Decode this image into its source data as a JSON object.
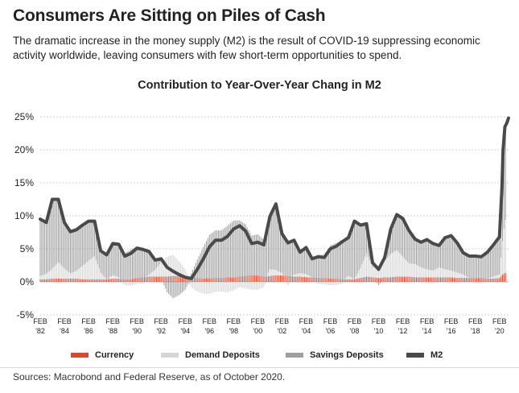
{
  "headline": "Consumers Are Sitting on Piles of Cash",
  "subtitle": "The dramatic increase in the money supply (M2) is the result of COVID-19 suppressing economic activity worldwide, leaving consumers with few short-term opportunities to spend.",
  "source": "Sources: Macrobond and Federal Reserve, as of October 2020.",
  "colors": {
    "currency": "#d9492f",
    "demand": "#d6d6d6",
    "savings": "#9e9e9e",
    "m2": "#4a4a4a"
  },
  "chart_data": {
    "type": "bar",
    "title": "Contribution to Year-Over-Year Chang in M2",
    "xlabel": "",
    "ylabel": "",
    "ylim": [
      -5,
      25
    ],
    "yticks": [
      -5,
      0,
      5,
      10,
      15,
      20,
      25
    ],
    "ytick_labels": [
      "-5%",
      "0%",
      "5%",
      "10%",
      "15%",
      "20%",
      "25%"
    ],
    "x_tick_labels": [
      {
        "year": 1982,
        "line1": "FEB",
        "line2": "'82"
      },
      {
        "year": 1984,
        "line1": "FEB",
        "line2": "'84"
      },
      {
        "year": 1986,
        "line1": "FEB",
        "line2": "'86"
      },
      {
        "year": 1988,
        "line1": "FEB",
        "line2": "'88"
      },
      {
        "year": 1990,
        "line1": "FEB",
        "line2": "'90"
      },
      {
        "year": 1992,
        "line1": "FEB",
        "line2": "'92"
      },
      {
        "year": 1994,
        "line1": "FEB",
        "line2": "'94"
      },
      {
        "year": 1996,
        "line1": "FEB",
        "line2": "'96"
      },
      {
        "year": 1998,
        "line1": "FEB",
        "line2": "'98"
      },
      {
        "year": 2000,
        "line1": "FEB",
        "line2": "'00"
      },
      {
        "year": 2002,
        "line1": "FEB",
        "line2": "'02"
      },
      {
        "year": 2004,
        "line1": "FEB",
        "line2": "'04"
      },
      {
        "year": 2006,
        "line1": "FEB",
        "line2": "'06"
      },
      {
        "year": 2008,
        "line1": "FEB",
        "line2": "'08"
      },
      {
        "year": 2010,
        "line1": "FEB",
        "line2": "'10"
      },
      {
        "year": 2012,
        "line1": "FEB",
        "line2": "'12"
      },
      {
        "year": 2014,
        "line1": "FEB",
        "line2": "'14"
      },
      {
        "year": 2016,
        "line1": "FEB",
        "line2": "'16"
      },
      {
        "year": 2018,
        "line1": "FEB",
        "line2": "'18"
      },
      {
        "year": 2020,
        "line1": "FEB",
        "line2": "'20"
      }
    ],
    "grid": true,
    "legend_position": "bottom",
    "series": [
      {
        "name": "Currency",
        "key": "currency",
        "kind": "bar",
        "x": [
          1982.0,
          1982.5,
          1983.0,
          1983.5,
          1984.0,
          1984.5,
          1985.0,
          1985.5,
          1986.0,
          1986.5,
          1987.0,
          1987.5,
          1988.0,
          1988.5,
          1989.0,
          1989.5,
          1990.0,
          1990.5,
          1991.0,
          1991.5,
          1992.0,
          1992.5,
          1993.0,
          1993.5,
          1994.0,
          1994.5,
          1995.0,
          1995.5,
          1996.0,
          1996.5,
          1997.0,
          1997.5,
          1998.0,
          1998.5,
          1999.0,
          1999.5,
          2000.0,
          2000.5,
          2001.0,
          2001.5,
          2002.0,
          2002.5,
          2003.0,
          2003.5,
          2004.0,
          2004.5,
          2005.0,
          2005.5,
          2006.0,
          2006.5,
          2007.0,
          2007.5,
          2008.0,
          2008.5,
          2009.0,
          2009.5,
          2010.0,
          2010.5,
          2011.0,
          2011.5,
          2012.0,
          2012.5,
          2013.0,
          2013.5,
          2014.0,
          2014.5,
          2015.0,
          2015.5,
          2016.0,
          2016.5,
          2017.0,
          2017.5,
          2018.0,
          2018.5,
          2019.0,
          2019.5,
          2020.0,
          2020.3,
          2020.6
        ],
        "values": [
          0.4,
          0.4,
          0.5,
          0.5,
          0.5,
          0.5,
          0.5,
          0.4,
          0.4,
          0.4,
          0.4,
          0.4,
          0.5,
          0.5,
          0.4,
          0.4,
          0.6,
          0.7,
          0.8,
          0.8,
          0.8,
          0.8,
          0.9,
          0.9,
          0.9,
          0.8,
          0.6,
          0.5,
          0.6,
          0.6,
          0.6,
          0.7,
          0.7,
          0.8,
          0.9,
          1.0,
          1.0,
          0.8,
          0.9,
          1.0,
          1.0,
          0.9,
          0.8,
          0.8,
          0.7,
          0.7,
          0.6,
          0.6,
          0.5,
          0.5,
          0.4,
          0.4,
          0.4,
          0.6,
          0.8,
          0.7,
          0.6,
          0.7,
          0.7,
          0.8,
          0.8,
          0.8,
          0.7,
          0.7,
          0.7,
          0.7,
          0.7,
          0.7,
          0.7,
          0.6,
          0.6,
          0.6,
          0.6,
          0.6,
          0.5,
          0.5,
          0.6,
          1.2,
          1.5
        ]
      },
      {
        "name": "Demand Deposits",
        "key": "demand",
        "kind": "bar",
        "x": [
          1982.0,
          1982.5,
          1983.0,
          1983.5,
          1984.0,
          1984.5,
          1985.0,
          1985.5,
          1986.0,
          1986.5,
          1987.0,
          1987.5,
          1988.0,
          1988.5,
          1989.0,
          1989.5,
          1990.0,
          1990.5,
          1991.0,
          1991.5,
          1992.0,
          1992.5,
          1993.0,
          1993.5,
          1994.0,
          1994.5,
          1995.0,
          1995.5,
          1996.0,
          1996.5,
          1997.0,
          1997.5,
          1998.0,
          1998.5,
          1999.0,
          1999.5,
          2000.0,
          2000.5,
          2001.0,
          2001.5,
          2002.0,
          2002.5,
          2003.0,
          2003.5,
          2004.0,
          2004.5,
          2005.0,
          2005.5,
          2006.0,
          2006.5,
          2007.0,
          2007.5,
          2008.0,
          2008.5,
          2009.0,
          2009.5,
          2010.0,
          2010.5,
          2011.0,
          2011.5,
          2012.0,
          2012.5,
          2013.0,
          2013.5,
          2014.0,
          2014.5,
          2015.0,
          2015.5,
          2016.0,
          2016.5,
          2017.0,
          2017.5,
          2018.0,
          2018.5,
          2019.0,
          2019.5,
          2020.0,
          2020.3,
          2020.6
        ],
        "values": [
          0.5,
          0.8,
          1.5,
          2.5,
          1.5,
          0.8,
          1.2,
          2.0,
          2.8,
          3.5,
          1.0,
          0.0,
          0.5,
          0.2,
          -0.5,
          -0.6,
          -0.3,
          -0.3,
          0.3,
          1.0,
          2.2,
          3.0,
          3.2,
          2.2,
          1.0,
          -0.8,
          -1.5,
          -1.8,
          -1.8,
          -1.5,
          -1.5,
          -1.6,
          -1.3,
          -0.8,
          -1.0,
          -1.2,
          -1.2,
          -0.8,
          1.0,
          0.8,
          0.3,
          -0.5,
          0.3,
          0.5,
          0.5,
          0.0,
          -0.3,
          -0.4,
          -0.5,
          -0.5,
          -0.3,
          0.5,
          0.0,
          1.5,
          3.5,
          1.5,
          1.8,
          2.5,
          3.5,
          4.0,
          3.0,
          2.0,
          2.0,
          1.5,
          1.2,
          1.0,
          1.5,
          1.2,
          1.0,
          0.8,
          0.5,
          0.0,
          -0.2,
          -0.2,
          0.0,
          0.3,
          0.5,
          6.0,
          9.0
        ]
      },
      {
        "name": "Savings Deposits",
        "key": "savings",
        "kind": "bar",
        "x": [
          1982.0,
          1982.5,
          1983.0,
          1983.5,
          1984.0,
          1984.5,
          1985.0,
          1985.5,
          1986.0,
          1986.5,
          1987.0,
          1987.5,
          1988.0,
          1988.5,
          1989.0,
          1989.5,
          1990.0,
          1990.5,
          1991.0,
          1991.5,
          1992.0,
          1992.5,
          1993.0,
          1993.5,
          1994.0,
          1994.5,
          1995.0,
          1995.5,
          1996.0,
          1996.5,
          1997.0,
          1997.5,
          1998.0,
          1998.5,
          1999.0,
          1999.5,
          2000.0,
          2000.5,
          2001.0,
          2001.5,
          2002.0,
          2002.5,
          2003.0,
          2003.5,
          2004.0,
          2004.5,
          2005.0,
          2005.5,
          2006.0,
          2006.5,
          2007.0,
          2007.5,
          2008.0,
          2008.5,
          2009.0,
          2009.5,
          2010.0,
          2010.5,
          2011.0,
          2011.5,
          2012.0,
          2012.5,
          2013.0,
          2013.5,
          2014.0,
          2014.5,
          2015.0,
          2015.5,
          2016.0,
          2016.5,
          2017.0,
          2017.5,
          2018.0,
          2018.5,
          2019.0,
          2019.5,
          2020.0,
          2020.3,
          2020.6
        ],
        "values": [
          8.5,
          8.2,
          10.5,
          9.5,
          7.0,
          6.3,
          6.2,
          6.2,
          6.0,
          5.3,
          3.3,
          3.7,
          4.8,
          5.0,
          4.0,
          4.5,
          4.8,
          4.5,
          3.5,
          1.5,
          0.5,
          -1.6,
          -2.5,
          -2.0,
          -1.2,
          0.5,
          2.8,
          4.8,
          6.5,
          7.2,
          7.2,
          7.8,
          8.6,
          8.5,
          7.8,
          6.0,
          6.2,
          5.6,
          8.0,
          10.0,
          6.0,
          5.5,
          5.2,
          3.2,
          4.0,
          2.8,
          3.5,
          3.5,
          5.0,
          5.4,
          6.0,
          5.8,
          8.8,
          6.5,
          4.5,
          0.7,
          -0.5,
          0.5,
          3.8,
          5.4,
          5.8,
          5.0,
          3.8,
          3.8,
          4.5,
          4.1,
          3.3,
          4.8,
          5.3,
          4.5,
          3.3,
          3.3,
          3.5,
          3.4,
          4.0,
          4.8,
          5.7,
          13.0,
          13.5
        ]
      },
      {
        "name": "M2",
        "key": "m2",
        "kind": "line",
        "x": [
          1982.0,
          1982.5,
          1983.0,
          1983.5,
          1984.0,
          1984.5,
          1985.0,
          1985.5,
          1986.0,
          1986.5,
          1987.0,
          1987.5,
          1988.0,
          1988.5,
          1989.0,
          1989.5,
          1990.0,
          1990.5,
          1991.0,
          1991.5,
          1992.0,
          1992.5,
          1993.0,
          1993.5,
          1994.0,
          1994.5,
          1995.0,
          1995.5,
          1996.0,
          1996.5,
          1997.0,
          1997.5,
          1998.0,
          1998.5,
          1999.0,
          1999.5,
          2000.0,
          2000.5,
          2001.0,
          2001.5,
          2002.0,
          2002.5,
          2003.0,
          2003.5,
          2004.0,
          2004.5,
          2005.0,
          2005.5,
          2006.0,
          2006.5,
          2007.0,
          2007.5,
          2008.0,
          2008.5,
          2009.0,
          2009.5,
          2010.0,
          2010.5,
          2011.0,
          2011.5,
          2012.0,
          2012.5,
          2013.0,
          2013.5,
          2014.0,
          2014.5,
          2015.0,
          2015.5,
          2016.0,
          2016.5,
          2017.0,
          2017.5,
          2018.0,
          2018.5,
          2019.0,
          2019.5,
          2020.0,
          2020.2,
          2020.3,
          2020.45,
          2020.6,
          2020.75
        ],
        "values": [
          9.5,
          9.0,
          12.5,
          12.5,
          9.0,
          7.6,
          7.9,
          8.6,
          9.2,
          9.2,
          4.7,
          4.1,
          5.8,
          5.7,
          3.9,
          4.3,
          5.1,
          4.9,
          4.6,
          3.3,
          3.5,
          2.2,
          1.6,
          1.1,
          0.7,
          0.5,
          1.9,
          3.5,
          5.3,
          6.3,
          6.3,
          6.9,
          8.0,
          8.5,
          7.7,
          5.8,
          6.0,
          5.6,
          9.9,
          11.8,
          7.3,
          5.9,
          6.3,
          4.5,
          5.2,
          3.5,
          3.8,
          3.7,
          5.0,
          5.4,
          6.1,
          6.7,
          9.2,
          8.6,
          8.8,
          2.9,
          1.9,
          3.7,
          8.0,
          10.2,
          9.6,
          7.8,
          6.5,
          6.0,
          6.4,
          5.8,
          5.5,
          6.7,
          7.0,
          5.9,
          4.4,
          3.9,
          3.9,
          3.8,
          4.5,
          5.6,
          6.8,
          14.0,
          20.0,
          23.5,
          24.0,
          24.8
        ]
      }
    ]
  }
}
